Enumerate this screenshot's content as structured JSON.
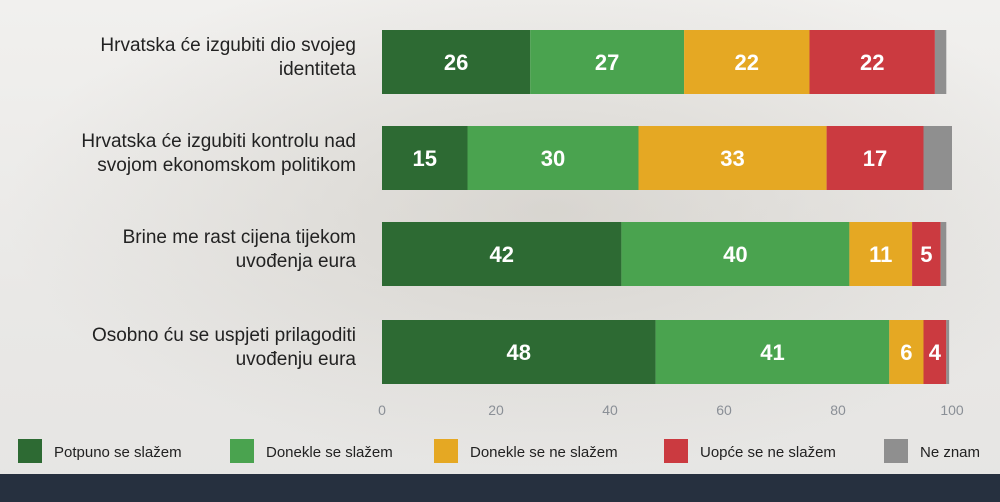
{
  "chart_data": {
    "type": "bar",
    "orientation": "horizontal",
    "stacked": true,
    "categories": [
      [
        "Hrvatska će izgubiti dio svojeg",
        "identiteta"
      ],
      [
        "Hrvatska će izgubiti kontrolu nad",
        "svojom ekonomskom politikom"
      ],
      [
        "Brine me rast cijena tijekom",
        "uvođenja eura"
      ],
      [
        "Osobno ću se uspjeti prilagoditi",
        "uvođenju eura"
      ]
    ],
    "series": [
      {
        "name": "Potpuno se slažem",
        "color": "#2d6a33",
        "values": [
          26,
          15,
          42,
          48
        ]
      },
      {
        "name": "Donekle se slažem",
        "color": "#4aa34f",
        "values": [
          27,
          30,
          40,
          41
        ]
      },
      {
        "name": "Donekle se ne slažem",
        "color": "#e5a823",
        "values": [
          22,
          33,
          11,
          6
        ]
      },
      {
        "name": "Uopće se ne slažem",
        "color": "#cb3a40",
        "values": [
          22,
          17,
          5,
          4
        ]
      },
      {
        "name": "Ne znam",
        "color": "#8f8f8f",
        "values": [
          2,
          5,
          1,
          0.5
        ]
      }
    ],
    "labeled_series": [
      0,
      1,
      2,
      3
    ],
    "xlim": [
      0,
      100
    ],
    "xticks": [
      0,
      20,
      40,
      60,
      80,
      100
    ],
    "legend_position": "bottom"
  }
}
